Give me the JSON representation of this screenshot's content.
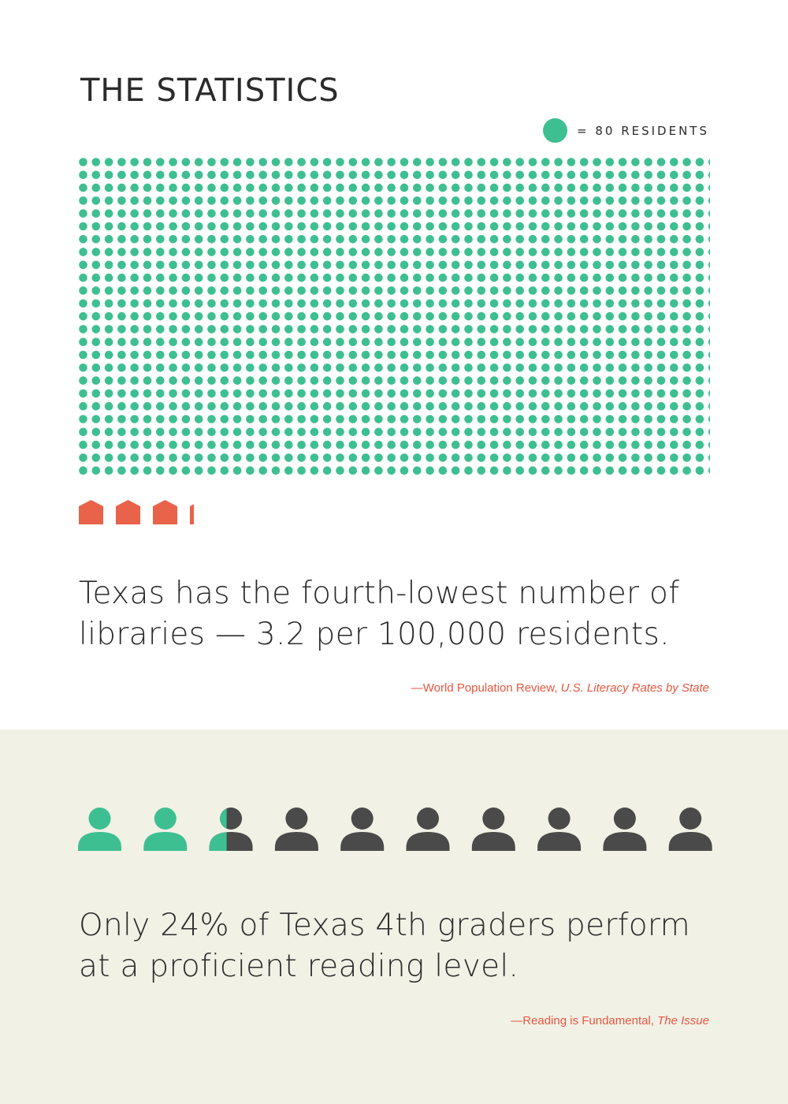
{
  "page": {
    "title": "THE STATISTICS",
    "legend": {
      "label": "= 80 RESIDENTS",
      "icon": "resident-dot-icon",
      "color": "#3ebf92"
    }
  },
  "section_libraries": {
    "dot_grid": {
      "rows": 25,
      "columns": 50,
      "count": 1250,
      "color": "#3ebf92"
    },
    "library_icons": {
      "count": 3.2,
      "icon": "library-building-icon",
      "color": "#e8634a"
    },
    "statement_line1": "Texas has the fourth-lowest number of",
    "statement_line2": "libraries — 3.2 per 100,000 residents.",
    "source_prefix": "—World Population Review, ",
    "source_title": "U.S. Literacy Rates by State"
  },
  "section_reading": {
    "people_icons": {
      "total": 10,
      "proficient": 2.4,
      "icon": "person-icon",
      "proficient_color": "#3ebf92",
      "other_color": "#4a4a4a"
    },
    "statement_line1": "Only 24% of Texas 4th graders perform",
    "statement_line2": "at a proficient reading level.",
    "source_prefix": "—Reading is Fundamental, ",
    "source_title": "The Issue",
    "background": "#f1f1e6"
  }
}
